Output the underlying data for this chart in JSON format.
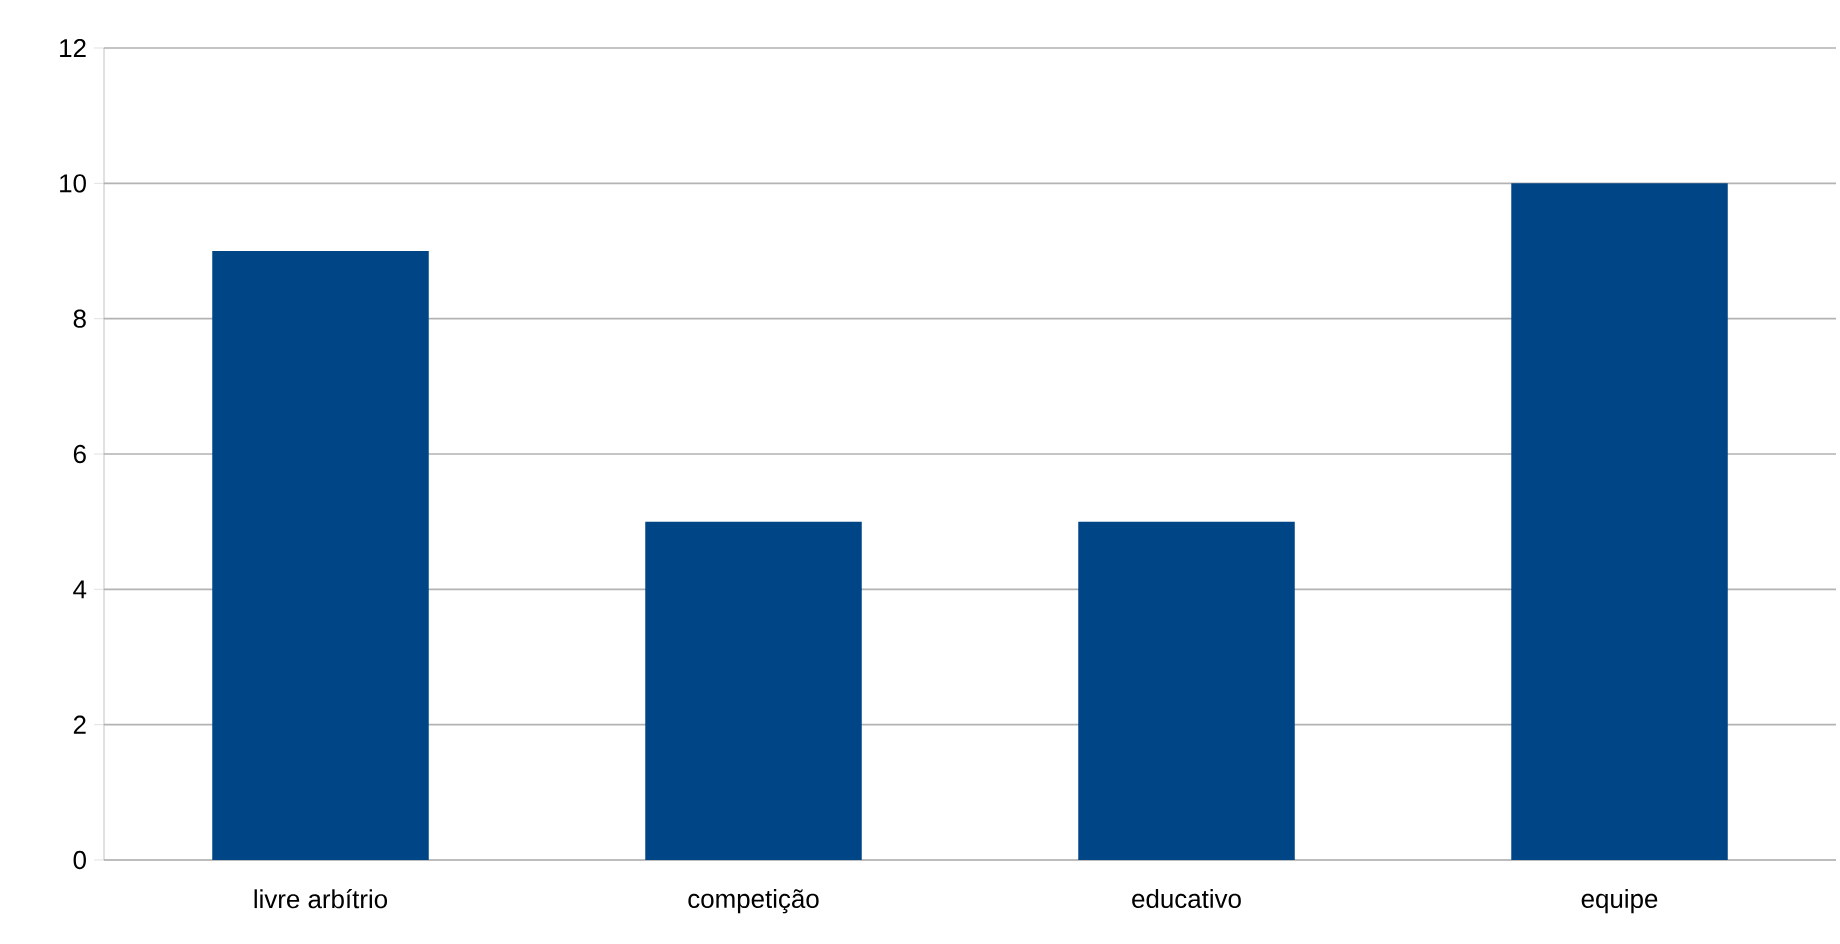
{
  "chart_data": {
    "type": "bar",
    "categories": [
      "livre arbítrio",
      "competição",
      "educativo",
      "equipe"
    ],
    "values": [
      9,
      5,
      5,
      10
    ],
    "color": "#004586",
    "ylim": [
      0,
      12
    ],
    "yticks": [
      0,
      2,
      4,
      6,
      8,
      10,
      12
    ],
    "grid": "y"
  }
}
